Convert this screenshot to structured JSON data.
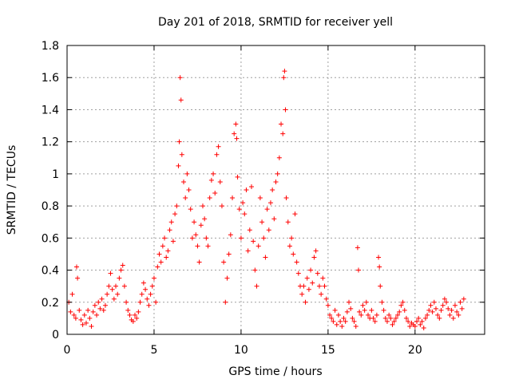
{
  "chart_data": {
    "type": "scatter",
    "title": "Day 201 of 2018, SRMTID for receiver yell",
    "xlabel": "GPS time / hours",
    "ylabel": "SRMTID / TECUs",
    "xlim": [
      0,
      24
    ],
    "ylim": [
      0,
      1.8
    ],
    "xticks": [
      0,
      5,
      10,
      15,
      20
    ],
    "xtick_labels": [
      "0",
      "5",
      "10",
      "15",
      "20"
    ],
    "yticks": [
      0,
      0.2,
      0.4,
      0.6,
      0.8,
      1.0,
      1.2,
      1.4,
      1.6,
      1.8
    ],
    "ytick_labels": [
      "0",
      "0.2",
      "0.4",
      "0.6",
      "0.8",
      "1",
      "1.2",
      "1.4",
      "1.6",
      "1.8"
    ],
    "grid": true,
    "marker": "+",
    "color": "#ff0000",
    "series": [
      {
        "name": "SRMTID",
        "points": [
          [
            0.1,
            0.2
          ],
          [
            0.2,
            0.14
          ],
          [
            0.3,
            0.25
          ],
          [
            0.4,
            0.12
          ],
          [
            0.5,
            0.1
          ],
          [
            0.55,
            0.42
          ],
          [
            0.6,
            0.35
          ],
          [
            0.7,
            0.15
          ],
          [
            0.8,
            0.09
          ],
          [
            0.9,
            0.06
          ],
          [
            1.0,
            0.12
          ],
          [
            1.1,
            0.07
          ],
          [
            1.2,
            0.15
          ],
          [
            1.3,
            0.1
          ],
          [
            1.4,
            0.05
          ],
          [
            1.5,
            0.14
          ],
          [
            1.6,
            0.18
          ],
          [
            1.7,
            0.12
          ],
          [
            1.8,
            0.2
          ],
          [
            1.9,
            0.16
          ],
          [
            2.0,
            0.22
          ],
          [
            2.1,
            0.15
          ],
          [
            2.2,
            0.18
          ],
          [
            2.3,
            0.25
          ],
          [
            2.4,
            0.3
          ],
          [
            2.5,
            0.38
          ],
          [
            2.6,
            0.28
          ],
          [
            2.7,
            0.22
          ],
          [
            2.8,
            0.3
          ],
          [
            2.9,
            0.25
          ],
          [
            3.0,
            0.35
          ],
          [
            3.1,
            0.4
          ],
          [
            3.2,
            0.43
          ],
          [
            3.3,
            0.3
          ],
          [
            3.4,
            0.2
          ],
          [
            3.5,
            0.15
          ],
          [
            3.6,
            0.12
          ],
          [
            3.7,
            0.09
          ],
          [
            3.8,
            0.08
          ],
          [
            3.9,
            0.12
          ],
          [
            4.0,
            0.1
          ],
          [
            4.1,
            0.14
          ],
          [
            4.2,
            0.2
          ],
          [
            4.3,
            0.25
          ],
          [
            4.4,
            0.32
          ],
          [
            4.5,
            0.28
          ],
          [
            4.6,
            0.22
          ],
          [
            4.7,
            0.18
          ],
          [
            4.8,
            0.25
          ],
          [
            4.9,
            0.3
          ],
          [
            5.0,
            0.35
          ],
          [
            5.1,
            0.2
          ],
          [
            5.2,
            0.42
          ],
          [
            5.3,
            0.5
          ],
          [
            5.4,
            0.45
          ],
          [
            5.5,
            0.55
          ],
          [
            5.6,
            0.6
          ],
          [
            5.7,
            0.48
          ],
          [
            5.8,
            0.52
          ],
          [
            5.9,
            0.65
          ],
          [
            6.0,
            0.7
          ],
          [
            6.1,
            0.58
          ],
          [
            6.2,
            0.75
          ],
          [
            6.3,
            0.8
          ],
          [
            6.4,
            1.05
          ],
          [
            6.45,
            1.2
          ],
          [
            6.5,
            1.6
          ],
          [
            6.55,
            1.46
          ],
          [
            6.6,
            1.12
          ],
          [
            6.7,
            0.95
          ],
          [
            6.8,
            0.85
          ],
          [
            6.9,
            1.0
          ],
          [
            7.0,
            0.9
          ],
          [
            7.1,
            0.78
          ],
          [
            7.2,
            0.6
          ],
          [
            7.3,
            0.7
          ],
          [
            7.4,
            0.62
          ],
          [
            7.5,
            0.55
          ],
          [
            7.6,
            0.45
          ],
          [
            7.7,
            0.68
          ],
          [
            7.8,
            0.8
          ],
          [
            7.9,
            0.72
          ],
          [
            8.0,
            0.6
          ],
          [
            8.1,
            0.55
          ],
          [
            8.2,
            0.85
          ],
          [
            8.3,
            0.96
          ],
          [
            8.4,
            1.0
          ],
          [
            8.5,
            0.88
          ],
          [
            8.6,
            1.12
          ],
          [
            8.7,
            1.17
          ],
          [
            8.8,
            0.95
          ],
          [
            8.9,
            0.8
          ],
          [
            9.0,
            0.45
          ],
          [
            9.1,
            0.2
          ],
          [
            9.2,
            0.35
          ],
          [
            9.3,
            0.5
          ],
          [
            9.4,
            0.62
          ],
          [
            9.5,
            0.85
          ],
          [
            9.6,
            1.25
          ],
          [
            9.7,
            1.31
          ],
          [
            9.75,
            1.22
          ],
          [
            9.8,
            0.98
          ],
          [
            9.9,
            0.78
          ],
          [
            10.0,
            0.6
          ],
          [
            10.1,
            0.82
          ],
          [
            10.2,
            0.75
          ],
          [
            10.3,
            0.9
          ],
          [
            10.4,
            0.52
          ],
          [
            10.5,
            0.65
          ],
          [
            10.6,
            0.92
          ],
          [
            10.7,
            0.58
          ],
          [
            10.8,
            0.4
          ],
          [
            10.9,
            0.3
          ],
          [
            11.0,
            0.55
          ],
          [
            11.1,
            0.85
          ],
          [
            11.2,
            0.7
          ],
          [
            11.3,
            0.6
          ],
          [
            11.4,
            0.48
          ],
          [
            11.5,
            0.78
          ],
          [
            11.6,
            0.65
          ],
          [
            11.7,
            0.82
          ],
          [
            11.8,
            0.9
          ],
          [
            11.9,
            0.72
          ],
          [
            12.0,
            0.95
          ],
          [
            12.1,
            1.0
          ],
          [
            12.2,
            1.1
          ],
          [
            12.3,
            1.31
          ],
          [
            12.4,
            1.25
          ],
          [
            12.45,
            1.6
          ],
          [
            12.5,
            1.64
          ],
          [
            12.55,
            1.4
          ],
          [
            12.6,
            0.85
          ],
          [
            12.7,
            0.7
          ],
          [
            12.8,
            0.55
          ],
          [
            12.9,
            0.6
          ],
          [
            13.0,
            0.5
          ],
          [
            13.1,
            0.75
          ],
          [
            13.2,
            0.45
          ],
          [
            13.3,
            0.38
          ],
          [
            13.4,
            0.3
          ],
          [
            13.5,
            0.25
          ],
          [
            13.6,
            0.3
          ],
          [
            13.7,
            0.2
          ],
          [
            13.8,
            0.35
          ],
          [
            13.9,
            0.28
          ],
          [
            14.0,
            0.4
          ],
          [
            14.1,
            0.32
          ],
          [
            14.2,
            0.48
          ],
          [
            14.3,
            0.52
          ],
          [
            14.4,
            0.38
          ],
          [
            14.5,
            0.3
          ],
          [
            14.6,
            0.25
          ],
          [
            14.7,
            0.35
          ],
          [
            14.8,
            0.3
          ],
          [
            14.9,
            0.22
          ],
          [
            15.0,
            0.18
          ],
          [
            15.1,
            0.12
          ],
          [
            15.2,
            0.1
          ],
          [
            15.3,
            0.08
          ],
          [
            15.4,
            0.15
          ],
          [
            15.5,
            0.06
          ],
          [
            15.6,
            0.12
          ],
          [
            15.7,
            0.08
          ],
          [
            15.8,
            0.05
          ],
          [
            15.9,
            0.1
          ],
          [
            16.0,
            0.08
          ],
          [
            16.1,
            0.14
          ],
          [
            16.2,
            0.2
          ],
          [
            16.3,
            0.16
          ],
          [
            16.4,
            0.1
          ],
          [
            16.5,
            0.08
          ],
          [
            16.6,
            0.05
          ],
          [
            16.7,
            0.54
          ],
          [
            16.75,
            0.4
          ],
          [
            16.8,
            0.14
          ],
          [
            16.9,
            0.12
          ],
          [
            17.0,
            0.18
          ],
          [
            17.1,
            0.15
          ],
          [
            17.2,
            0.2
          ],
          [
            17.3,
            0.12
          ],
          [
            17.4,
            0.1
          ],
          [
            17.5,
            0.15
          ],
          [
            17.6,
            0.1
          ],
          [
            17.7,
            0.08
          ],
          [
            17.8,
            0.12
          ],
          [
            17.9,
            0.48
          ],
          [
            17.95,
            0.42
          ],
          [
            18.0,
            0.3
          ],
          [
            18.1,
            0.2
          ],
          [
            18.2,
            0.15
          ],
          [
            18.3,
            0.1
          ],
          [
            18.4,
            0.08
          ],
          [
            18.5,
            0.12
          ],
          [
            18.6,
            0.1
          ],
          [
            18.7,
            0.06
          ],
          [
            18.8,
            0.08
          ],
          [
            18.9,
            0.1
          ],
          [
            19.0,
            0.12
          ],
          [
            19.1,
            0.14
          ],
          [
            19.2,
            0.18
          ],
          [
            19.3,
            0.2
          ],
          [
            19.4,
            0.15
          ],
          [
            19.5,
            0.1
          ],
          [
            19.6,
            0.08
          ],
          [
            19.7,
            0.05
          ],
          [
            19.8,
            0.07
          ],
          [
            19.9,
            0.06
          ],
          [
            20.0,
            0.05
          ],
          [
            20.1,
            0.08
          ],
          [
            20.2,
            0.1
          ],
          [
            20.3,
            0.06
          ],
          [
            20.4,
            0.08
          ],
          [
            20.5,
            0.04
          ],
          [
            20.6,
            0.1
          ],
          [
            20.7,
            0.12
          ],
          [
            20.8,
            0.15
          ],
          [
            20.9,
            0.18
          ],
          [
            21.0,
            0.14
          ],
          [
            21.1,
            0.2
          ],
          [
            21.2,
            0.16
          ],
          [
            21.3,
            0.12
          ],
          [
            21.4,
            0.1
          ],
          [
            21.5,
            0.15
          ],
          [
            21.6,
            0.18
          ],
          [
            21.7,
            0.22
          ],
          [
            21.8,
            0.2
          ],
          [
            21.9,
            0.16
          ],
          [
            22.0,
            0.12
          ],
          [
            22.1,
            0.15
          ],
          [
            22.2,
            0.1
          ],
          [
            22.3,
            0.18
          ],
          [
            22.4,
            0.14
          ],
          [
            22.5,
            0.12
          ],
          [
            22.6,
            0.2
          ],
          [
            22.7,
            0.16
          ],
          [
            22.8,
            0.22
          ]
        ]
      }
    ]
  }
}
